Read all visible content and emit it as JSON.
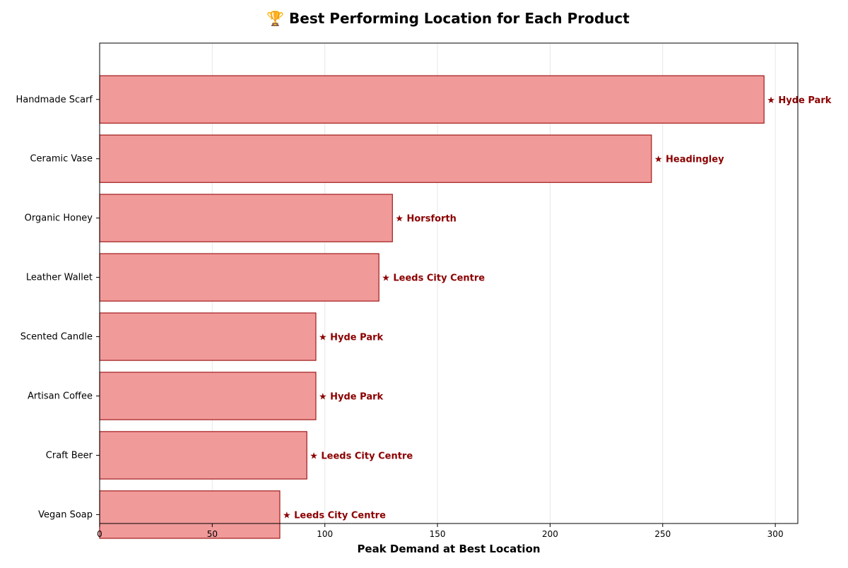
{
  "chart_data": {
    "type": "bar",
    "orientation": "horizontal",
    "title": "🏆 Best Performing Location for Each Product",
    "xlabel": "Peak Demand at Best Location",
    "ylabel": "",
    "xlim": [
      0,
      310
    ],
    "xticks": [
      0,
      50,
      100,
      150,
      200,
      250,
      300
    ],
    "grid": "x",
    "categories": [
      "Handmade Scarf",
      "Ceramic Vase",
      "Organic Honey",
      "Leather Wallet",
      "Scented Candle",
      "Artisan Coffee",
      "Craft Beer",
      "Vegan Soap"
    ],
    "values": [
      295,
      245,
      130,
      124,
      96,
      96,
      92,
      80
    ],
    "annotations": [
      "★ Hyde Park",
      "★ Headingley",
      "★ Horsforth",
      "★ Leeds City Centre",
      "★ Hyde Park",
      "★ Hyde Park",
      "★ Leeds City Centre",
      "★ Leeds City Centre"
    ],
    "colors": {
      "bar_fill": "#f19a9a",
      "bar_edge": "#a11a1a",
      "annotation": "#8b0000",
      "grid": "#e6e6e6",
      "axis": "#000000"
    }
  }
}
